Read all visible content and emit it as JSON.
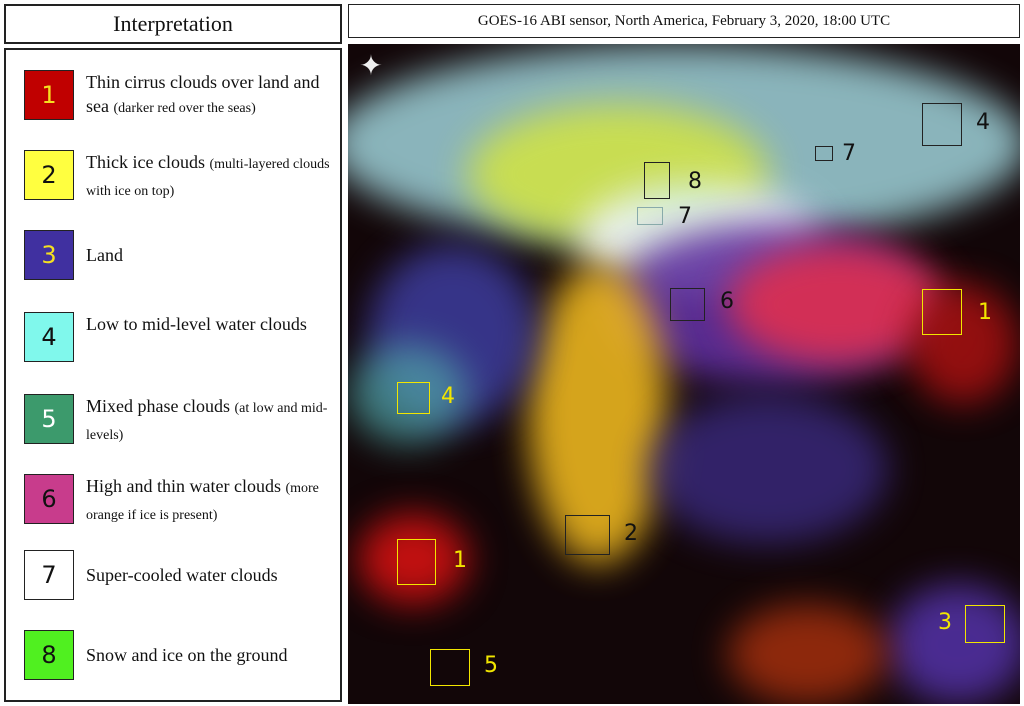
{
  "legend": {
    "title": "Interpretation",
    "items": [
      {
        "num": "1",
        "text": "Thin cirrus clouds over land and sea",
        "note": "(darker red over the seas)",
        "color": "#c00000",
        "num_color": "#f5e020"
      },
      {
        "num": "2",
        "text": "Thick ice clouds",
        "note": "(multi-layered clouds with ice on top)",
        "color": "#ffff40",
        "num_color": "#111111"
      },
      {
        "num": "3",
        "text": "Land",
        "note": "",
        "color": "#4030a0",
        "num_color": "#f5e020"
      },
      {
        "num": "4",
        "text": "Low to mid-level water clouds",
        "note": "",
        "color": "#80f8ec",
        "num_color": "#111111"
      },
      {
        "num": "5",
        "text": "Mixed phase clouds",
        "note": "(at low and mid-levels)",
        "color": "#3c9a6c",
        "num_color": "#ffffff"
      },
      {
        "num": "6",
        "text": "High and thin water clouds",
        "note": "(more orange if ice is present)",
        "color": "#c83c8c",
        "num_color": "#111111"
      },
      {
        "num": "7",
        "text": "Super-cooled water clouds",
        "note": "",
        "color": "#ffffff",
        "num_color": "#111111"
      },
      {
        "num": "8",
        "text": "Snow and ice on the ground",
        "note": "",
        "color": "#50f020",
        "num_color": "#111111"
      }
    ]
  },
  "map": {
    "title": "GOES-16 ABI sensor, North America, February 3, 2020, 18:00 UTC",
    "compass_icon": "compass-rose-icon",
    "annotations": [
      "4",
      "7",
      "8",
      "7",
      "6",
      "1",
      "4",
      "2",
      "1",
      "3",
      "5"
    ]
  }
}
